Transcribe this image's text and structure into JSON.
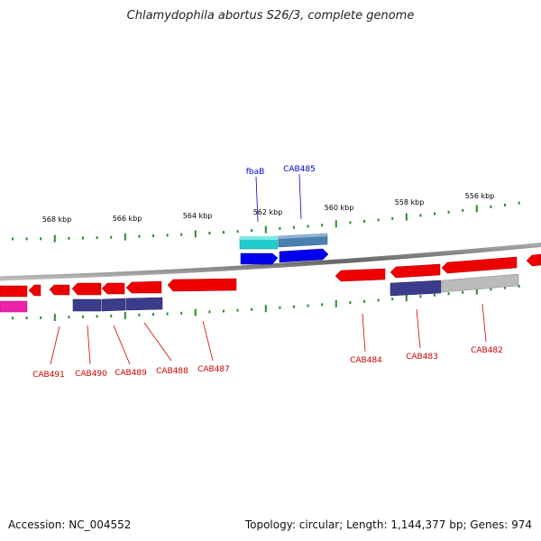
{
  "title": "Chlamydophila abortus S26/3, complete genome",
  "footer": {
    "accession": "Accession: NC_004552",
    "summary": "Topology: circular; Length: 1,144,377 bp; Genes: 974"
  },
  "colors": {
    "forward_label": "#0000cc",
    "reverse_label": "#cc0000",
    "backbone": "#777777",
    "ticks": "#2a8a2a",
    "cds_red": "#ee0000",
    "cds_cyan": "#22cccc",
    "cds_steel": "#4a80b0",
    "cds_blue": "#0000ee",
    "cds_navy": "#3c3c8c",
    "cds_gray": "#bbbbbb",
    "cds_magenta": "#ee22aa"
  },
  "scale_labels": [
    "568 kbp",
    "566 kbp",
    "564 kbp",
    "562 kbp",
    "560 kbp",
    "558 kbp",
    "556 kbp"
  ],
  "forward_gene_labels": [
    "fbaB",
    "CAB485"
  ],
  "reverse_gene_labels": [
    "CAB491",
    "CAB490",
    "CAB489",
    "CAB488",
    "CAB487",
    "CAB484",
    "CAB483",
    "CAB482"
  ]
}
